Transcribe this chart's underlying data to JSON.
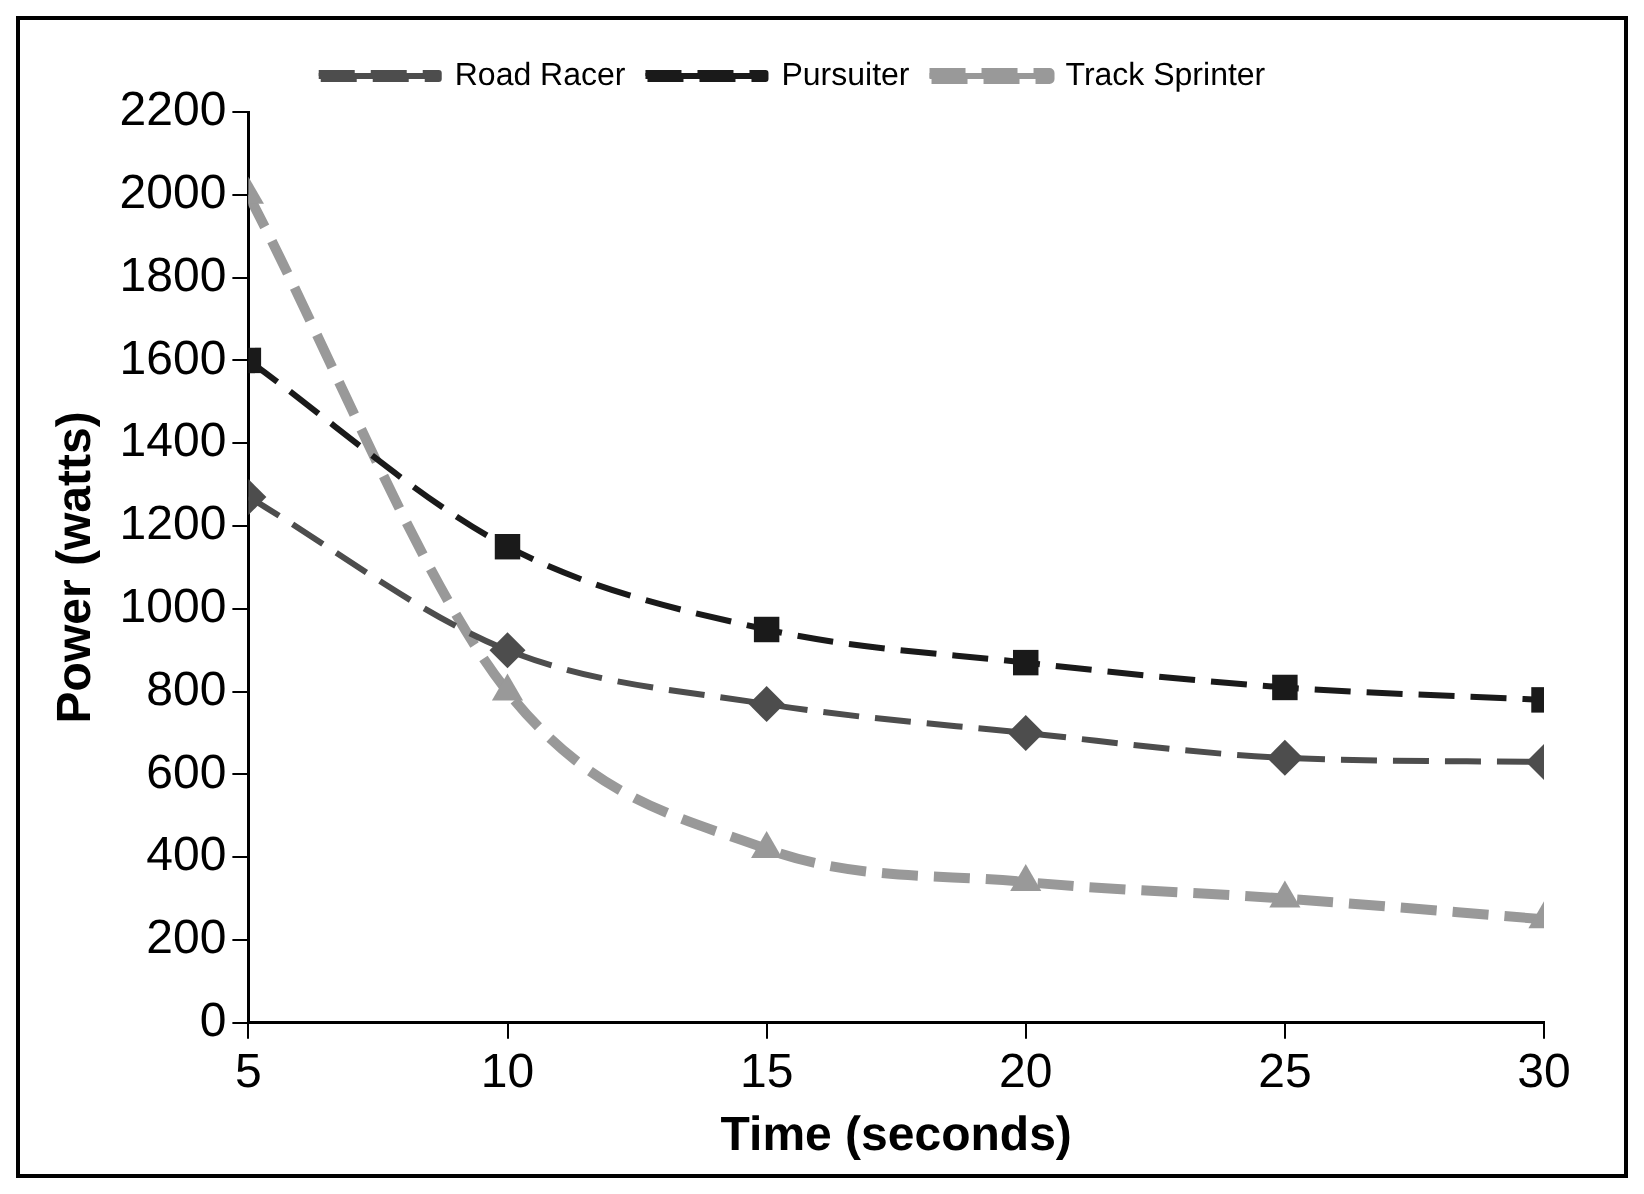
{
  "chart_data": {
    "type": "line",
    "xlabel": "Time (seconds)",
    "ylabel": "Power (watts)",
    "x": [
      5,
      10,
      15,
      20,
      25,
      30
    ],
    "series": [
      {
        "name": "Road Racer",
        "color": "#4d4d4d",
        "marker": "diamond",
        "line_style": "dashed",
        "values": [
          1270,
          900,
          770,
          700,
          640,
          630
        ]
      },
      {
        "name": "Pursuiter",
        "color": "#1a1a1a",
        "marker": "square",
        "line_style": "dashed",
        "values": [
          1600,
          1150,
          950,
          870,
          810,
          780
        ]
      },
      {
        "name": "Track Sprinter",
        "color": "#999999",
        "marker": "triangle",
        "line_style": "dashed",
        "values": [
          2000,
          800,
          420,
          340,
          300,
          250
        ]
      }
    ],
    "xlim": [
      5,
      30
    ],
    "xticks": [
      5,
      10,
      15,
      20,
      25,
      30
    ],
    "ylim": [
      0,
      2200
    ],
    "yticks": [
      0,
      200,
      400,
      600,
      800,
      1000,
      1200,
      1400,
      1600,
      1800,
      2000,
      2200
    ],
    "grid": false,
    "legend": "top"
  }
}
